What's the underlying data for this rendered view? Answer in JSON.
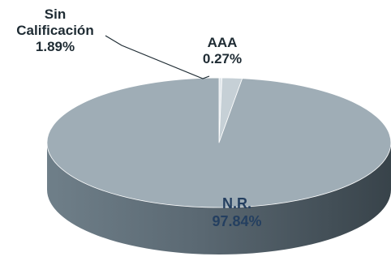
{
  "chart_data": {
    "type": "pie",
    "title": "",
    "slices": [
      {
        "name": "N.R.",
        "name_lines": [
          "N.R."
        ],
        "value": 97.84,
        "value_label": "97.84%",
        "color": "#9fadb6"
      },
      {
        "name": "Sin Calificación",
        "name_lines": [
          "Sin",
          "Calificación"
        ],
        "value": 1.89,
        "value_label": "1.89%",
        "color": "#c6d0d6"
      },
      {
        "name": "AAA",
        "name_lines": [
          "AAA"
        ],
        "value": 0.27,
        "value_label": "0.27%",
        "color": "#e1e7eb"
      }
    ],
    "legend": "none",
    "style": "3d"
  }
}
